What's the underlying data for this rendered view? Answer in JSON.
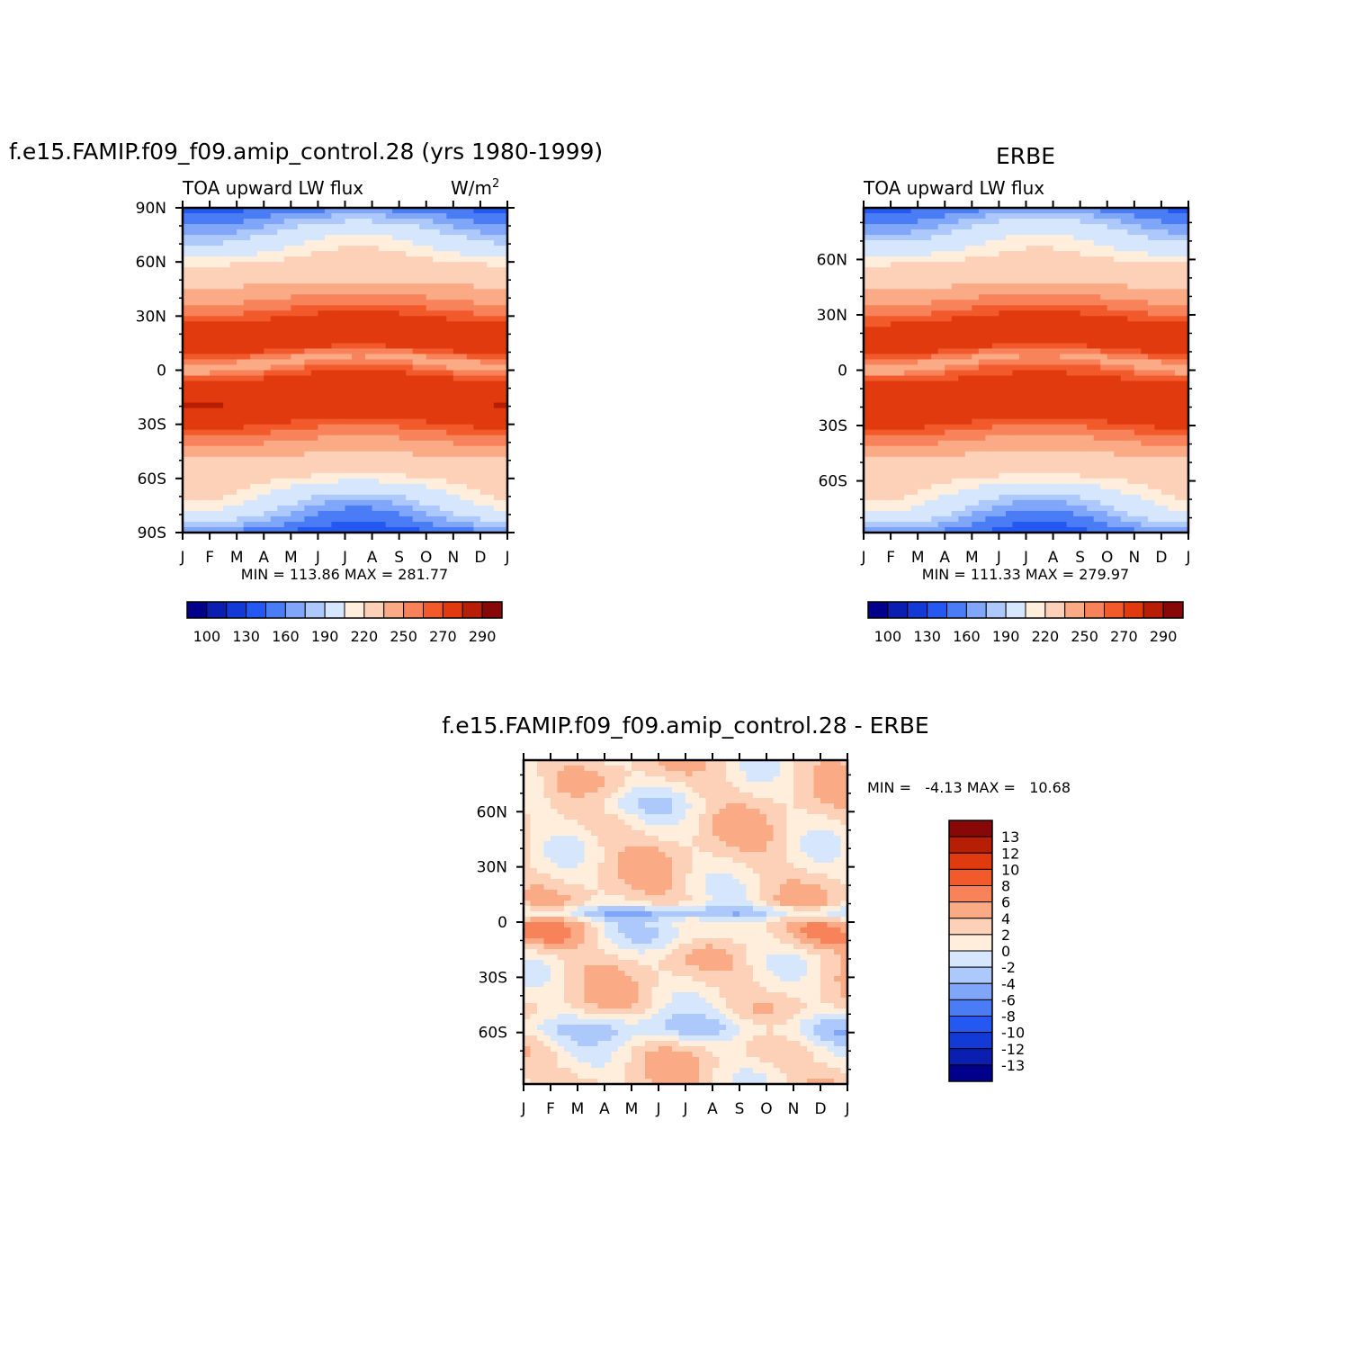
{
  "palette_full": [
    "#00008b",
    "#0a1fb0",
    "#1339d6",
    "#2458f0",
    "#4a7df5",
    "#7fa6f9",
    "#adc8fb",
    "#d6e6fd",
    "#ffeedc",
    "#fdd0b8",
    "#fbaa86",
    "#f8835a",
    "#f25a2c",
    "#e03a0e",
    "#b61f05",
    "#880808"
  ],
  "palette_diff": [
    "#880808",
    "#b61f05",
    "#e03a0e",
    "#f25a2c",
    "#f8835a",
    "#fbaa86",
    "#fdd0b8",
    "#ffeedc",
    "#d6e6fd",
    "#adc8fb",
    "#7fa6f9",
    "#4a7df5",
    "#2458f0",
    "#1339d6",
    "#0a1fb0",
    "#00008b"
  ],
  "chart_data": [
    {
      "type": "heatmap",
      "title": "f.e15.FAMIP.f09_f09.amip_control.28 (yrs 1980-1999)",
      "subtitle_left": "TOA upward LW flux",
      "subtitle_right": "W/m",
      "units_superscript": "2",
      "x_tick_labels": [
        "J",
        "F",
        "M",
        "A",
        "M",
        "J",
        "J",
        "A",
        "S",
        "O",
        "N",
        "D",
        "J"
      ],
      "y_tick_labels": [
        "90N",
        "60N",
        "30N",
        "0",
        "30S",
        "60S",
        "90S"
      ],
      "y_tick_values": [
        90,
        60,
        30,
        0,
        -30,
        -60,
        -90
      ],
      "ylim": [
        -90,
        90
      ],
      "min_label": "MIN = 113.86 MAX = 281.77",
      "min": 113.86,
      "max": 281.77,
      "colorbar_labels": [
        "100",
        "130",
        "160",
        "190",
        "220",
        "250",
        "270",
        "290"
      ],
      "colorbar_levels": [
        100,
        110,
        120,
        130,
        140,
        150,
        160,
        170,
        190,
        200,
        220,
        230,
        240,
        250,
        270,
        280,
        290
      ],
      "hemisphere_offset": 0
    },
    {
      "type": "heatmap",
      "title": "ERBE",
      "subtitle_left": "TOA upward LW flux",
      "x_tick_labels": [
        "J",
        "F",
        "M",
        "A",
        "M",
        "J",
        "J",
        "A",
        "S",
        "O",
        "N",
        "D",
        "J"
      ],
      "y_tick_labels": [
        "60N",
        "30N",
        "0",
        "30S",
        "60S"
      ],
      "y_tick_values": [
        60,
        30,
        0,
        -30,
        -60
      ],
      "ylim": [
        -88,
        88
      ],
      "min_label": "MIN = 111.33 MAX = 279.97",
      "min": 111.33,
      "max": 279.97,
      "colorbar_labels": [
        "100",
        "130",
        "160",
        "190",
        "220",
        "250",
        "270",
        "290"
      ]
    },
    {
      "type": "heatmap",
      "title": "f.e15.FAMIP.f09_f09.amip_control.28 - ERBE",
      "x_tick_labels": [
        "J",
        "F",
        "M",
        "A",
        "M",
        "J",
        "J",
        "A",
        "S",
        "O",
        "N",
        "D",
        "J"
      ],
      "y_tick_labels": [
        "60N",
        "30N",
        "0",
        "30S",
        "60S"
      ],
      "y_tick_values": [
        60,
        30,
        0,
        -30,
        -60
      ],
      "ylim": [
        -88,
        88
      ],
      "min_label": "MIN =   -4.13 MAX =   10.68",
      "min": -4.13,
      "max": 10.68,
      "colorbar_labels": [
        "13",
        "12",
        "10",
        "8",
        "6",
        "4",
        "2",
        "0",
        "-2",
        "-4",
        "-6",
        "-8",
        "-10",
        "-12",
        "-13"
      ]
    }
  ]
}
